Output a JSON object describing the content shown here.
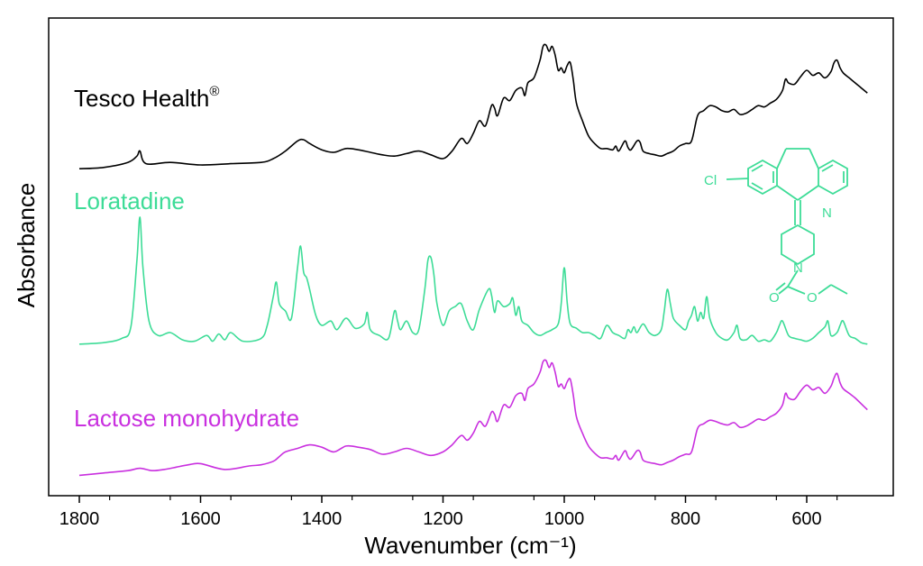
{
  "chart_data": {
    "type": "line",
    "xlabel": "Wavenumber (cm⁻¹)",
    "ylabel": "Absorbance",
    "x_ticks": [
      1800,
      1600,
      1400,
      1200,
      1000,
      800,
      600
    ],
    "xlim": [
      1850,
      480
    ],
    "x_reversed": true,
    "grid": false,
    "series": [
      {
        "name": "Tesco Health",
        "superscript": "®",
        "color": "#000000",
        "offset": 2.0,
        "x": [
          1800,
          1760,
          1720,
          1705,
          1700,
          1690,
          1650,
          1600,
          1550,
          1500,
          1480,
          1460,
          1440,
          1430,
          1420,
          1400,
          1380,
          1360,
          1340,
          1320,
          1300,
          1280,
          1260,
          1240,
          1220,
          1200,
          1185,
          1170,
          1160,
          1150,
          1140,
          1130,
          1120,
          1115,
          1110,
          1100,
          1090,
          1080,
          1070,
          1065,
          1060,
          1050,
          1040,
          1035,
          1030,
          1025,
          1020,
          1015,
          1010,
          1005,
          1000,
          995,
          990,
          985,
          980,
          970,
          960,
          950,
          940,
          930,
          920,
          915,
          910,
          900,
          895,
          890,
          880,
          875,
          870,
          860,
          850,
          840,
          830,
          820,
          810,
          800,
          790,
          780,
          770,
          760,
          750,
          740,
          730,
          720,
          710,
          700,
          690,
          680,
          670,
          660,
          650,
          640,
          635,
          630,
          620,
          610,
          600,
          590,
          580,
          570,
          560,
          555,
          550,
          545,
          540,
          530,
          520,
          510,
          500
        ],
        "y": [
          0.02,
          0.03,
          0.07,
          0.12,
          0.16,
          0.06,
          0.07,
          0.05,
          0.06,
          0.07,
          0.1,
          0.16,
          0.24,
          0.25,
          0.22,
          0.17,
          0.15,
          0.18,
          0.17,
          0.15,
          0.13,
          0.12,
          0.14,
          0.16,
          0.13,
          0.1,
          0.16,
          0.26,
          0.22,
          0.3,
          0.4,
          0.36,
          0.52,
          0.5,
          0.44,
          0.58,
          0.56,
          0.64,
          0.66,
          0.6,
          0.7,
          0.74,
          0.88,
          0.99,
          1.0,
          0.95,
          0.99,
          0.92,
          0.8,
          0.82,
          0.78,
          0.84,
          0.86,
          0.72,
          0.54,
          0.4,
          0.28,
          0.22,
          0.18,
          0.18,
          0.17,
          0.2,
          0.16,
          0.24,
          0.19,
          0.17,
          0.24,
          0.23,
          0.16,
          0.14,
          0.13,
          0.12,
          0.14,
          0.16,
          0.2,
          0.22,
          0.24,
          0.44,
          0.48,
          0.52,
          0.51,
          0.48,
          0.47,
          0.49,
          0.45,
          0.46,
          0.49,
          0.52,
          0.51,
          0.54,
          0.57,
          0.64,
          0.73,
          0.7,
          0.69,
          0.75,
          0.8,
          0.76,
          0.78,
          0.74,
          0.79,
          0.86,
          0.88,
          0.82,
          0.78,
          0.74,
          0.7,
          0.66,
          0.62
        ]
      },
      {
        "name": "Loratadine",
        "color": "#3ddc97",
        "offset": 1.0,
        "x": [
          1800,
          1760,
          1730,
          1715,
          1705,
          1700,
          1695,
          1685,
          1670,
          1650,
          1630,
          1610,
          1590,
          1580,
          1570,
          1560,
          1550,
          1530,
          1500,
          1490,
          1480,
          1475,
          1470,
          1460,
          1450,
          1440,
          1435,
          1430,
          1425,
          1420,
          1410,
          1400,
          1385,
          1375,
          1360,
          1345,
          1330,
          1325,
          1320,
          1305,
          1290,
          1280,
          1275,
          1270,
          1260,
          1250,
          1240,
          1230,
          1225,
          1220,
          1215,
          1210,
          1200,
          1190,
          1180,
          1170,
          1160,
          1150,
          1140,
          1125,
          1120,
          1115,
          1110,
          1100,
          1090,
          1085,
          1080,
          1075,
          1070,
          1060,
          1050,
          1040,
          1030,
          1020,
          1010,
          1005,
          1000,
          995,
          990,
          980,
          970,
          960,
          950,
          940,
          930,
          920,
          910,
          900,
          895,
          890,
          885,
          880,
          870,
          860,
          850,
          840,
          835,
          830,
          825,
          820,
          810,
          800,
          795,
          790,
          785,
          780,
          775,
          770,
          765,
          760,
          750,
          740,
          730,
          720,
          715,
          710,
          700,
          690,
          680,
          670,
          660,
          650,
          645,
          640,
          630,
          620,
          610,
          600,
          590,
          580,
          570,
          565,
          560,
          550,
          545,
          540,
          530,
          520,
          510,
          500
        ],
        "y": [
          0.02,
          0.03,
          0.06,
          0.14,
          0.6,
          0.9,
          0.55,
          0.18,
          0.08,
          0.1,
          0.05,
          0.04,
          0.08,
          0.04,
          0.09,
          0.05,
          0.1,
          0.04,
          0.06,
          0.15,
          0.35,
          0.45,
          0.3,
          0.25,
          0.2,
          0.55,
          0.7,
          0.52,
          0.48,
          0.4,
          0.22,
          0.15,
          0.18,
          0.12,
          0.2,
          0.13,
          0.16,
          0.24,
          0.12,
          0.08,
          0.06,
          0.25,
          0.18,
          0.12,
          0.18,
          0.1,
          0.12,
          0.4,
          0.6,
          0.62,
          0.5,
          0.3,
          0.15,
          0.25,
          0.28,
          0.3,
          0.18,
          0.12,
          0.26,
          0.4,
          0.36,
          0.24,
          0.32,
          0.28,
          0.3,
          0.34,
          0.22,
          0.28,
          0.18,
          0.15,
          0.1,
          0.08,
          0.1,
          0.12,
          0.16,
          0.3,
          0.55,
          0.3,
          0.16,
          0.13,
          0.1,
          0.1,
          0.08,
          0.06,
          0.15,
          0.1,
          0.08,
          0.06,
          0.12,
          0.1,
          0.14,
          0.1,
          0.16,
          0.1,
          0.08,
          0.12,
          0.25,
          0.4,
          0.3,
          0.2,
          0.15,
          0.12,
          0.18,
          0.22,
          0.28,
          0.18,
          0.24,
          0.2,
          0.35,
          0.2,
          0.1,
          0.06,
          0.05,
          0.1,
          0.15,
          0.06,
          0.05,
          0.08,
          0.04,
          0.05,
          0.04,
          0.1,
          0.15,
          0.18,
          0.08,
          0.06,
          0.05,
          0.04,
          0.06,
          0.1,
          0.14,
          0.18,
          0.08,
          0.1,
          0.15,
          0.18,
          0.08,
          0.06,
          0.03,
          0.02
        ]
      },
      {
        "name": "Lactose monohydrate",
        "color": "#c930df",
        "offset": 0.0,
        "x": [
          1800,
          1760,
          1720,
          1700,
          1680,
          1660,
          1640,
          1620,
          1600,
          1560,
          1520,
          1500,
          1480,
          1470,
          1460,
          1440,
          1420,
          1400,
          1380,
          1360,
          1340,
          1320,
          1300,
          1280,
          1260,
          1240,
          1220,
          1200,
          1185,
          1170,
          1160,
          1150,
          1140,
          1130,
          1120,
          1115,
          1110,
          1100,
          1090,
          1080,
          1070,
          1065,
          1060,
          1050,
          1040,
          1035,
          1030,
          1025,
          1020,
          1015,
          1010,
          1005,
          1000,
          995,
          990,
          985,
          980,
          970,
          960,
          950,
          940,
          930,
          920,
          915,
          910,
          900,
          895,
          890,
          880,
          875,
          870,
          860,
          850,
          840,
          830,
          820,
          810,
          800,
          790,
          780,
          770,
          760,
          750,
          740,
          730,
          720,
          710,
          700,
          690,
          680,
          670,
          660,
          650,
          640,
          635,
          630,
          620,
          610,
          600,
          590,
          580,
          570,
          560,
          555,
          550,
          545,
          540,
          530,
          520,
          510,
          500
        ],
        "y": [
          0.02,
          0.04,
          0.06,
          0.08,
          0.06,
          0.07,
          0.09,
          0.11,
          0.12,
          0.07,
          0.1,
          0.11,
          0.14,
          0.18,
          0.22,
          0.25,
          0.28,
          0.26,
          0.22,
          0.27,
          0.26,
          0.24,
          0.2,
          0.22,
          0.25,
          0.22,
          0.19,
          0.22,
          0.28,
          0.36,
          0.32,
          0.38,
          0.48,
          0.44,
          0.56,
          0.54,
          0.48,
          0.62,
          0.6,
          0.7,
          0.72,
          0.66,
          0.76,
          0.8,
          0.9,
          0.99,
          1.0,
          0.94,
          0.98,
          0.9,
          0.78,
          0.8,
          0.76,
          0.82,
          0.84,
          0.7,
          0.52,
          0.38,
          0.27,
          0.21,
          0.17,
          0.17,
          0.16,
          0.19,
          0.15,
          0.23,
          0.18,
          0.16,
          0.23,
          0.22,
          0.15,
          0.13,
          0.12,
          0.11,
          0.13,
          0.15,
          0.18,
          0.2,
          0.22,
          0.42,
          0.46,
          0.49,
          0.48,
          0.46,
          0.45,
          0.47,
          0.43,
          0.44,
          0.47,
          0.5,
          0.49,
          0.52,
          0.55,
          0.62,
          0.72,
          0.68,
          0.67,
          0.74,
          0.79,
          0.75,
          0.77,
          0.72,
          0.78,
          0.85,
          0.89,
          0.81,
          0.76,
          0.72,
          0.68,
          0.63,
          0.58
        ]
      }
    ]
  },
  "molecule": {
    "atom_cl": "Cl",
    "atom_n_ring": "N",
    "atom_n_pip": "N",
    "atom_o_carbonyl": "O",
    "atom_o_ester": "O",
    "color": "#3ddc97"
  }
}
